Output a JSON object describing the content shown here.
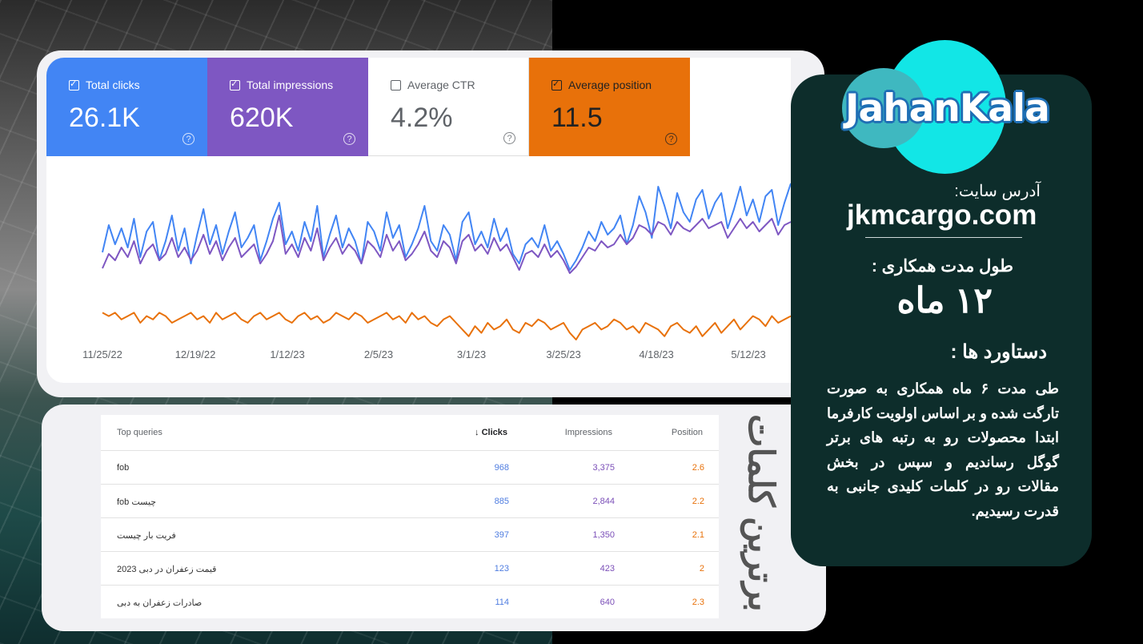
{
  "metrics": {
    "clicks": {
      "label": "Total clicks",
      "value": "26.1K",
      "checked": true
    },
    "impressions": {
      "label": "Total impressions",
      "value": "620K",
      "checked": true
    },
    "ctr": {
      "label": "Average CTR",
      "value": "4.2%",
      "checked": false
    },
    "position": {
      "label": "Average position",
      "value": "11.5",
      "checked": true
    },
    "help_symbol": "?"
  },
  "chart_data": {
    "type": "line",
    "x_ticks": [
      "11/25/22",
      "12/19/22",
      "1/12/23",
      "2/5/23",
      "3/1/23",
      "3/25/23",
      "4/18/23",
      "5/12/23"
    ],
    "series": [
      {
        "name": "Total clicks",
        "color": "#4285f4",
        "values": [
          55,
          72,
          60,
          70,
          58,
          76,
          52,
          68,
          74,
          50,
          62,
          78,
          56,
          70,
          48,
          66,
          82,
          60,
          72,
          54,
          68,
          80,
          58,
          64,
          72,
          50,
          62,
          76,
          86,
          60,
          68,
          56,
          74,
          62,
          84,
          52,
          66,
          78,
          58,
          70,
          62,
          48,
          74,
          68,
          56,
          80,
          64,
          72,
          52,
          60,
          70,
          84,
          62,
          56,
          72,
          66,
          50,
          74,
          80,
          60,
          68,
          58,
          76,
          62,
          70,
          54,
          48,
          60,
          64,
          58,
          72,
          56,
          62,
          54,
          44,
          50,
          58,
          68,
          62,
          74,
          66,
          70,
          78,
          60,
          72,
          90,
          80,
          64,
          96,
          84,
          70,
          92,
          80,
          74,
          88,
          94,
          76,
          86,
          92,
          70,
          82,
          96,
          78,
          88,
          74,
          90,
          94,
          72,
          86,
          98
        ]
      },
      {
        "name": "Total impressions",
        "color": "#7e57c2",
        "values": [
          45,
          54,
          50,
          58,
          52,
          62,
          48,
          56,
          60,
          50,
          54,
          64,
          52,
          58,
          50,
          56,
          66,
          54,
          62,
          50,
          58,
          64,
          52,
          56,
          60,
          48,
          54,
          62,
          78,
          54,
          60,
          52,
          64,
          56,
          70,
          50,
          58,
          64,
          54,
          60,
          56,
          48,
          62,
          58,
          52,
          66,
          56,
          62,
          50,
          54,
          60,
          68,
          56,
          52,
          62,
          58,
          48,
          62,
          66,
          56,
          60,
          54,
          64,
          56,
          60,
          52,
          44,
          54,
          56,
          52,
          60,
          52,
          56,
          50,
          42,
          46,
          52,
          58,
          56,
          62,
          58,
          60,
          66,
          60,
          64,
          72,
          70,
          66,
          74,
          72,
          66,
          74,
          70,
          68,
          72,
          76,
          70,
          72,
          74,
          64,
          70,
          76,
          70,
          74,
          68,
          72,
          76,
          66,
          72,
          74
        ]
      },
      {
        "name": "Average position",
        "color": "#e8710a",
        "values": [
          12,
          13,
          12,
          14,
          13,
          12,
          15,
          13,
          14,
          12,
          13,
          15,
          14,
          13,
          12,
          14,
          13,
          15,
          12,
          14,
          13,
          12,
          14,
          15,
          13,
          12,
          14,
          13,
          12,
          14,
          15,
          13,
          12,
          14,
          13,
          15,
          14,
          12,
          13,
          14,
          12,
          13,
          15,
          14,
          13,
          12,
          14,
          13,
          15,
          12,
          14,
          13,
          15,
          16,
          14,
          13,
          15,
          17,
          19,
          16,
          18,
          15,
          17,
          16,
          14,
          17,
          18,
          15,
          16,
          14,
          15,
          17,
          16,
          15,
          18,
          20,
          17,
          16,
          15,
          17,
          16,
          14,
          15,
          17,
          16,
          18,
          15,
          16,
          17,
          19,
          16,
          15,
          17,
          18,
          16,
          19,
          17,
          15,
          18,
          16,
          14,
          17,
          15,
          13,
          14,
          16,
          13,
          15,
          14,
          13
        ]
      }
    ]
  },
  "table": {
    "headers": {
      "query": "Top queries",
      "clicks": "Clicks",
      "impressions": "Impressions",
      "position": "Position",
      "sort_icon": "↓"
    },
    "rows": [
      {
        "query": "fob",
        "clicks": "968",
        "impressions": "3,375",
        "position": "2.6"
      },
      {
        "query": "fob چیست",
        "clicks": "885",
        "impressions": "2,844",
        "position": "2.2"
      },
      {
        "query": "فریت بار چیست",
        "clicks": "397",
        "impressions": "1,350",
        "position": "2.1"
      },
      {
        "query": "قیمت زعفران در دبی 2023",
        "clicks": "123",
        "impressions": "423",
        "position": "2"
      },
      {
        "query": "صادرات زعفران به دبی",
        "clicks": "114",
        "impressions": "640",
        "position": "2.3"
      }
    ]
  },
  "side_title": "برترین کلمات",
  "card": {
    "logo": "JahanKala",
    "address_label": "آدرس سایت:",
    "address": "jkmcargo.com",
    "duration_label": "طول مدت همکاری :",
    "duration": "۱۲ ماه",
    "achievements_label": "دستاورد ها :",
    "description": "طی مدت ۶ ماه همکاری به صورت تارگت شده و بر اساس اولویت کارفرما ابتدا محصولات رو به رتبه های برتر گوگل رساندیم و سپس در بخش مقالات رو در کلمات کلیدی جانبی به قدرت رسیدیم."
  }
}
